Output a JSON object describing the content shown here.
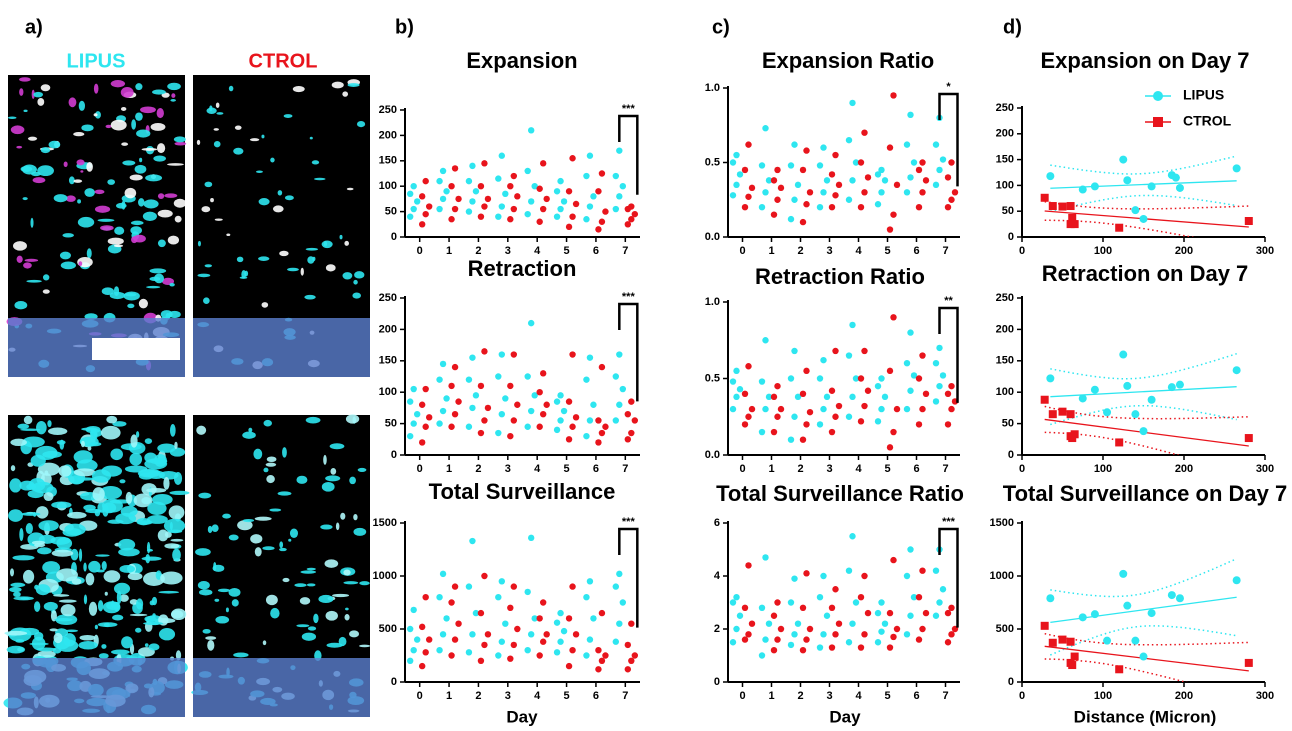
{
  "panel_labels": [
    "a)",
    "b)",
    "c)",
    "d)"
  ],
  "image_labels": [
    "LIPUS",
    "CTROL"
  ],
  "chart_data": [
    {
      "type": "strip",
      "title": "Expansion",
      "categories": [
        "0",
        "1",
        "2",
        "3",
        "4",
        "5",
        "6",
        "7"
      ],
      "ylim": [
        0,
        250
      ],
      "yticks": [
        0,
        50,
        100,
        150,
        200,
        250
      ],
      "annotation": "***",
      "series": [
        {
          "color": "#2ee6f0",
          "values": [
            [
              40,
              55,
              70,
              85,
              100
            ],
            [
              55,
              75,
              90,
              110,
              130
            ],
            [
              50,
              70,
              90,
              110,
              140
            ],
            [
              40,
              60,
              85,
              115,
              160
            ],
            [
              45,
              70,
              100,
              130,
              210
            ],
            [
              40,
              55,
              70,
              90,
              110
            ],
            [
              35,
              60,
              80,
              120,
              160
            ],
            [
              55,
              80,
              100,
              120,
              170
            ]
          ]
        },
        {
          "color": "#e8141c",
          "values": [
            [
              25,
              45,
              60,
              80,
              110
            ],
            [
              35,
              55,
              75,
              100,
              135
            ],
            [
              40,
              60,
              75,
              100,
              145
            ],
            [
              35,
              55,
              80,
              100,
              120
            ],
            [
              30,
              55,
              75,
              95,
              145
            ],
            [
              20,
              40,
              65,
              90,
              155
            ],
            [
              15,
              30,
              50,
              90,
              125
            ],
            [
              25,
              35,
              45,
              55,
              60
            ]
          ]
        }
      ]
    },
    {
      "type": "strip",
      "title": "Retraction",
      "categories": [
        "0",
        "1",
        "2",
        "3",
        "4",
        "5",
        "6",
        "7"
      ],
      "ylim": [
        0,
        250
      ],
      "yticks": [
        0,
        50,
        100,
        150,
        200,
        250
      ],
      "annotation": "***",
      "series": [
        {
          "color": "#2ee6f0",
          "values": [
            [
              30,
              50,
              65,
              85,
              105
            ],
            [
              50,
              70,
              90,
              120,
              145
            ],
            [
              45,
              75,
              95,
              120,
              155
            ],
            [
              35,
              65,
              90,
              125,
              160
            ],
            [
              45,
              70,
              95,
              125,
              210
            ],
            [
              40,
              55,
              70,
              85,
              95
            ],
            [
              30,
              55,
              80,
              120,
              155
            ],
            [
              55,
              80,
              105,
              125,
              160
            ]
          ]
        },
        {
          "color": "#e8141c",
          "values": [
            [
              20,
              45,
              60,
              80,
              105
            ],
            [
              45,
              65,
              85,
              110,
              140
            ],
            [
              35,
              55,
              75,
              110,
              165
            ],
            [
              30,
              55,
              80,
              110,
              160
            ],
            [
              45,
              65,
              80,
              100,
              130
            ],
            [
              25,
              45,
              60,
              85,
              160
            ],
            [
              20,
              35,
              45,
              55,
              140
            ],
            [
              25,
              35,
              55,
              65,
              85
            ]
          ]
        }
      ]
    },
    {
      "type": "strip",
      "title": "Total Surveillance",
      "xlabel": "Day",
      "categories": [
        "0",
        "1",
        "2",
        "3",
        "4",
        "5",
        "6",
        "7"
      ],
      "ylim": [
        0,
        1500
      ],
      "yticks": [
        0,
        500,
        1000,
        1500
      ],
      "annotation": "***",
      "series": [
        {
          "color": "#2ee6f0",
          "values": [
            [
              200,
              300,
              400,
              500,
              680
            ],
            [
              300,
              450,
              600,
              800,
              1020
            ],
            [
              280,
              450,
              650,
              900,
              1330
            ],
            [
              250,
              380,
              550,
              800,
              950
            ],
            [
              300,
              450,
              600,
              850,
              1360
            ],
            [
              280,
              380,
              480,
              560,
              650
            ],
            [
              250,
              400,
              600,
              800,
              950
            ],
            [
              380,
              550,
              750,
              900,
              1020
            ]
          ]
        },
        {
          "color": "#e8141c",
          "values": [
            [
              150,
              280,
              400,
              520,
              800
            ],
            [
              250,
              400,
              550,
              750,
              900
            ],
            [
              200,
              350,
              450,
              650,
              1000
            ],
            [
              220,
              350,
              500,
              700,
              900
            ],
            [
              250,
              380,
              450,
              600,
              750
            ],
            [
              150,
              300,
              450,
              600,
              900
            ],
            [
              120,
              200,
              250,
              300,
              650
            ],
            [
              120,
              200,
              250,
              350,
              550
            ]
          ]
        }
      ]
    },
    {
      "type": "strip",
      "title": "Expansion Ratio",
      "categories": [
        "0",
        "1",
        "2",
        "3",
        "4",
        "5",
        "6",
        "7"
      ],
      "ylim": [
        0,
        1
      ],
      "yticks": [
        {
          "value": 0,
          "label": "0.0"
        },
        0.5,
        {
          "value": 1,
          "label": "1.0"
        }
      ],
      "annotation": "*",
      "series": [
        {
          "color": "#2ee6f0",
          "values": [
            [
              0.28,
              0.35,
              0.42,
              0.5,
              0.55
            ],
            [
              0.2,
              0.3,
              0.38,
              0.48,
              0.73
            ],
            [
              0.12,
              0.25,
              0.35,
              0.48,
              0.62
            ],
            [
              0.2,
              0.3,
              0.38,
              0.48,
              0.6
            ],
            [
              0.25,
              0.38,
              0.5,
              0.65,
              0.9
            ],
            [
              0.22,
              0.3,
              0.38,
              0.42,
              0.45
            ],
            [
              0.3,
              0.4,
              0.5,
              0.62,
              0.82
            ],
            [
              0.35,
              0.45,
              0.52,
              0.62,
              0.8
            ]
          ]
        },
        {
          "color": "#e8141c",
          "values": [
            [
              0.2,
              0.27,
              0.33,
              0.45,
              0.62
            ],
            [
              0.15,
              0.25,
              0.33,
              0.38,
              0.45
            ],
            [
              0.1,
              0.22,
              0.3,
              0.45,
              0.58
            ],
            [
              0.2,
              0.28,
              0.35,
              0.42,
              0.55
            ],
            [
              0.2,
              0.3,
              0.4,
              0.5,
              0.7
            ],
            [
              0.05,
              0.15,
              0.35,
              0.6,
              0.95
            ],
            [
              0.2,
              0.3,
              0.38,
              0.45,
              0.5
            ],
            [
              0.2,
              0.25,
              0.3,
              0.4,
              0.5
            ]
          ]
        }
      ]
    },
    {
      "type": "strip",
      "title": "Retraction Ratio",
      "categories": [
        "0",
        "1",
        "2",
        "3",
        "4",
        "5",
        "6",
        "7"
      ],
      "ylim": [
        0,
        1
      ],
      "yticks": [
        {
          "value": 0,
          "label": "0.0"
        },
        0.5,
        {
          "value": 1,
          "label": "1.0"
        }
      ],
      "annotation": "**",
      "series": [
        {
          "color": "#2ee6f0",
          "values": [
            [
              0.3,
              0.38,
              0.43,
              0.48,
              0.55
            ],
            [
              0.15,
              0.3,
              0.38,
              0.48,
              0.75
            ],
            [
              0.1,
              0.25,
              0.38,
              0.5,
              0.68
            ],
            [
              0.2,
              0.3,
              0.38,
              0.5,
              0.62
            ],
            [
              0.25,
              0.38,
              0.5,
              0.65,
              0.85
            ],
            [
              0.22,
              0.3,
              0.38,
              0.45,
              0.5
            ],
            [
              0.3,
              0.42,
              0.52,
              0.6,
              0.8
            ],
            [
              0.35,
              0.45,
              0.52,
              0.6,
              0.7
            ]
          ]
        },
        {
          "color": "#e8141c",
          "values": [
            [
              0.2,
              0.25,
              0.3,
              0.4,
              0.58
            ],
            [
              0.15,
              0.25,
              0.3,
              0.38,
              0.45
            ],
            [
              0.1,
              0.2,
              0.28,
              0.4,
              0.55
            ],
            [
              0.15,
              0.25,
              0.32,
              0.42,
              0.68
            ],
            [
              0.22,
              0.32,
              0.42,
              0.5,
              0.68
            ],
            [
              0.05,
              0.15,
              0.3,
              0.55,
              0.9
            ],
            [
              0.2,
              0.3,
              0.4,
              0.5,
              0.65
            ],
            [
              0.2,
              0.3,
              0.35,
              0.4,
              0.45
            ]
          ]
        }
      ]
    },
    {
      "type": "strip",
      "title": "Total Surveillance Ratio",
      "xlabel": "Day",
      "categories": [
        "0",
        "1",
        "2",
        "3",
        "4",
        "5",
        "6",
        "7"
      ],
      "ylim": [
        0,
        6
      ],
      "yticks": [
        0,
        2,
        4,
        6
      ],
      "annotation": "***",
      "series": [
        {
          "color": "#2ee6f0",
          "values": [
            [
              1.5,
              2.0,
              2.5,
              3.0,
              3.2
            ],
            [
              1.0,
              1.6,
              2.2,
              2.8,
              4.7
            ],
            [
              1.4,
              1.8,
              2.2,
              3.0,
              3.9
            ],
            [
              1.3,
              1.8,
              2.5,
              3.2,
              4.0
            ],
            [
              1.5,
              2.2,
              3.0,
              4.2,
              5.5
            ],
            [
              1.5,
              1.9,
              2.2,
              2.6,
              3.0
            ],
            [
              1.8,
              2.5,
              3.2,
              4.0,
              5.0
            ],
            [
              2.5,
              3.0,
              3.5,
              4.2,
              5.0
            ]
          ]
        },
        {
          "color": "#e8141c",
          "values": [
            [
              1.6,
              1.8,
              2.2,
              2.8,
              4.4
            ],
            [
              1.2,
              1.6,
              2.0,
              2.5,
              3.0
            ],
            [
              1.2,
              1.6,
              2.0,
              2.8,
              4.1
            ],
            [
              1.3,
              1.8,
              2.2,
              2.8,
              3.5
            ],
            [
              1.3,
              1.8,
              2.6,
              3.2,
              4.0
            ],
            [
              1.3,
              1.7,
              2.0,
              2.6,
              4.6
            ],
            [
              1.6,
              2.0,
              2.6,
              3.2,
              4.2
            ],
            [
              1.5,
              1.8,
              2.0,
              2.6,
              2.8
            ]
          ]
        }
      ]
    },
    {
      "type": "scatter",
      "title": "Expansion on Day 7",
      "legend": "upper right",
      "xlim": [
        0,
        300
      ],
      "xticks": [
        0,
        100,
        200,
        300
      ],
      "ylim": [
        0,
        250
      ],
      "yticks": [
        0,
        50,
        100,
        150,
        200,
        250
      ],
      "series": [
        {
          "name": "LIPUS",
          "color": "#2ee6f0",
          "marker": "circle",
          "x": [
            35,
            75,
            90,
            125,
            130,
            140,
            150,
            160,
            185,
            190,
            195,
            265
          ],
          "values": [
            118,
            92,
            98,
            150,
            110,
            52,
            35,
            98,
            120,
            115,
            95,
            133
          ]
        },
        {
          "name": "CTROL",
          "color": "#e8141c",
          "marker": "square",
          "x": [
            28,
            38,
            50,
            60,
            60,
            65,
            62,
            120,
            280
          ],
          "values": [
            76,
            60,
            59,
            60,
            25,
            25,
            37,
            18,
            31
          ]
        }
      ]
    },
    {
      "type": "scatter",
      "title": "Retraction on Day 7",
      "xlim": [
        0,
        300
      ],
      "xticks": [
        0,
        100,
        200,
        300
      ],
      "ylim": [
        0,
        250
      ],
      "yticks": [
        0,
        50,
        100,
        150,
        200,
        250
      ],
      "series": [
        {
          "color": "#2ee6f0",
          "marker": "circle",
          "x": [
            35,
            75,
            90,
            105,
            125,
            130,
            140,
            150,
            160,
            185,
            195,
            265
          ],
          "values": [
            122,
            90,
            104,
            68,
            160,
            110,
            65,
            38,
            88,
            108,
            112,
            135
          ]
        },
        {
          "color": "#e8141c",
          "marker": "square",
          "x": [
            28,
            38,
            50,
            60,
            60,
            65,
            62,
            120,
            280
          ],
          "values": [
            88,
            65,
            69,
            65,
            30,
            33,
            27,
            20,
            27
          ]
        }
      ]
    },
    {
      "type": "scatter",
      "title": "Total Surveillance on Day 7",
      "xlabel": "Distance (Micron)",
      "xlim": [
        0,
        300
      ],
      "xticks": [
        0,
        100,
        200,
        300
      ],
      "ylim": [
        0,
        1500
      ],
      "yticks": [
        0,
        500,
        1000,
        1500
      ],
      "series": [
        {
          "color": "#2ee6f0",
          "marker": "circle",
          "x": [
            35,
            75,
            90,
            105,
            125,
            130,
            140,
            150,
            160,
            185,
            195,
            265
          ],
          "values": [
            790,
            610,
            640,
            390,
            1020,
            720,
            390,
            240,
            650,
            820,
            790,
            960
          ]
        },
        {
          "color": "#e8141c",
          "marker": "square",
          "x": [
            28,
            38,
            50,
            60,
            60,
            65,
            62,
            120,
            280
          ],
          "values": [
            530,
            370,
            400,
            380,
            180,
            240,
            160,
            120,
            180
          ]
        }
      ]
    }
  ]
}
